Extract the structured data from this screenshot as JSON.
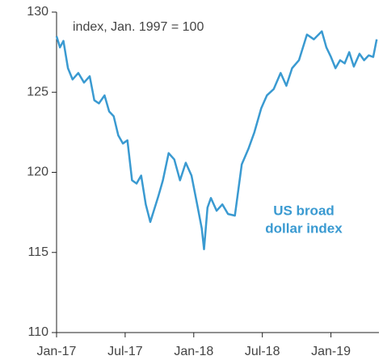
{
  "chart_data": {
    "type": "line",
    "subtitle": "index, Jan. 1997 = 100",
    "series_label": [
      "US broad",
      "dollar index"
    ],
    "xlim": [
      0,
      28.2
    ],
    "xticks": [
      {
        "value": 0,
        "label": "Jan-17"
      },
      {
        "value": 6,
        "label": "Jul-17"
      },
      {
        "value": 12,
        "label": "Jan-18"
      },
      {
        "value": 18,
        "label": "Jul-18"
      },
      {
        "value": 24,
        "label": "Jan-19"
      }
    ],
    "ylim": [
      110,
      130
    ],
    "yticks": [
      110,
      115,
      120,
      125,
      130
    ],
    "series": [
      {
        "name": "US broad dollar index",
        "color": "#3a9ad1",
        "x": [
          0,
          0.3,
          0.6,
          1,
          1.4,
          1.9,
          2.4,
          2.9,
          3.3,
          3.7,
          4.2,
          4.6,
          5.0,
          5.4,
          5.8,
          6.2,
          6.6,
          7.0,
          7.4,
          7.8,
          8.2,
          8.9,
          9.3,
          9.8,
          10.3,
          10.8,
          11.3,
          11.8,
          12.3,
          12.7,
          12.9,
          13.2,
          13.5,
          14.0,
          14.5,
          15.0,
          15.6,
          16.2,
          16.8,
          17.3,
          17.9,
          18.4,
          19.0,
          19.6,
          20.1,
          20.6,
          21.2,
          21.9,
          22.5,
          23.2,
          23.6,
          24.0,
          24.4,
          24.8,
          25.2,
          25.6,
          26.0,
          26.5,
          26.9,
          27.3,
          27.7,
          28.0
        ],
        "values": [
          128.5,
          127.8,
          128.2,
          126.5,
          125.8,
          126.2,
          125.6,
          126.0,
          124.5,
          124.3,
          124.8,
          123.8,
          123.5,
          122.3,
          121.8,
          122.0,
          119.5,
          119.3,
          119.8,
          118.0,
          116.9,
          118.5,
          119.5,
          121.2,
          120.8,
          119.5,
          120.6,
          119.8,
          118.0,
          116.5,
          115.2,
          117.8,
          118.4,
          117.6,
          118.0,
          117.4,
          117.3,
          120.5,
          121.5,
          122.5,
          124.0,
          124.8,
          125.2,
          126.2,
          125.4,
          126.5,
          127.0,
          128.6,
          128.3,
          128.8,
          127.8,
          127.2,
          126.5,
          127.0,
          126.8,
          127.5,
          126.6,
          127.4,
          127.0,
          127.3,
          127.2,
          128.3
        ]
      }
    ]
  }
}
